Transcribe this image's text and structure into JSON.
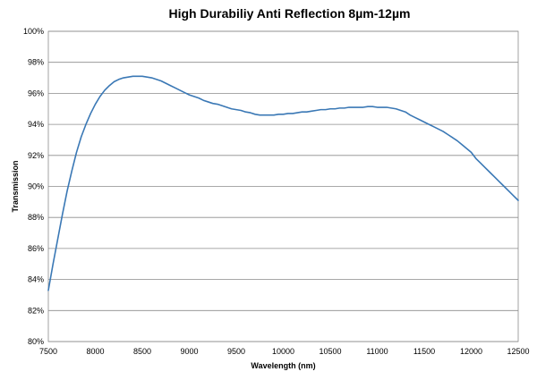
{
  "chart_data": {
    "type": "line",
    "title": "High Durabiliy Anti Reflection 8µm-12µm",
    "xlabel": "Wavelength (nm)",
    "ylabel": "Transmission",
    "xlim": [
      7500,
      12500
    ],
    "ylim": [
      80,
      100
    ],
    "x_ticks": [
      7500,
      8000,
      8500,
      9000,
      9500,
      10000,
      10500,
      11000,
      11500,
      12000,
      12500
    ],
    "x_tick_labels": [
      "7500",
      "8000",
      "8500",
      "9000",
      "9500",
      "10000",
      "10500",
      "11000",
      "11500",
      "12000",
      "12500"
    ],
    "y_ticks": [
      80,
      82,
      84,
      86,
      88,
      90,
      92,
      94,
      96,
      98,
      100
    ],
    "y_tick_labels": [
      "80%",
      "82%",
      "84%",
      "86%",
      "88%",
      "90%",
      "92%",
      "94%",
      "96%",
      "98%",
      "100%"
    ],
    "grid": "horizontal",
    "legend": "none",
    "series": [
      {
        "color": "#3a78b5",
        "x": [
          7500,
          7550,
          7600,
          7650,
          7700,
          7750,
          7800,
          7850,
          7900,
          7950,
          8000,
          8050,
          8100,
          8150,
          8200,
          8250,
          8300,
          8350,
          8400,
          8450,
          8500,
          8550,
          8600,
          8650,
          8700,
          8750,
          8800,
          8850,
          8900,
          8950,
          9000,
          9050,
          9100,
          9150,
          9200,
          9250,
          9300,
          9350,
          9400,
          9450,
          9500,
          9550,
          9600,
          9650,
          9700,
          9750,
          9800,
          9850,
          9900,
          9950,
          10000,
          10050,
          10100,
          10150,
          10200,
          10250,
          10300,
          10350,
          10400,
          10450,
          10500,
          10550,
          10600,
          10650,
          10700,
          10750,
          10800,
          10850,
          10900,
          10950,
          11000,
          11050,
          11100,
          11150,
          11200,
          11250,
          11300,
          11350,
          11400,
          11450,
          11500,
          11550,
          11600,
          11650,
          11700,
          11750,
          11800,
          11850,
          11900,
          11950,
          12000,
          12050,
          12100,
          12150,
          12200,
          12250,
          12300,
          12350,
          12400,
          12450,
          12500
        ],
        "y": [
          83.3,
          85.0,
          86.6,
          88.2,
          89.7,
          91.0,
          92.2,
          93.2,
          94.0,
          94.7,
          95.3,
          95.8,
          96.2,
          96.5,
          96.75,
          96.9,
          97.0,
          97.05,
          97.1,
          97.1,
          97.1,
          97.05,
          97.0,
          96.9,
          96.8,
          96.65,
          96.5,
          96.35,
          96.2,
          96.05,
          95.9,
          95.8,
          95.7,
          95.55,
          95.45,
          95.35,
          95.3,
          95.2,
          95.1,
          95.0,
          94.95,
          94.9,
          94.8,
          94.75,
          94.65,
          94.6,
          94.6,
          94.6,
          94.6,
          94.65,
          94.65,
          94.7,
          94.7,
          94.75,
          94.8,
          94.8,
          94.85,
          94.9,
          94.95,
          94.95,
          95.0,
          95.0,
          95.05,
          95.05,
          95.1,
          95.1,
          95.1,
          95.1,
          95.15,
          95.15,
          95.1,
          95.1,
          95.1,
          95.05,
          95.0,
          94.9,
          94.8,
          94.6,
          94.45,
          94.3,
          94.15,
          94.0,
          93.85,
          93.7,
          93.55,
          93.35,
          93.15,
          92.95,
          92.7,
          92.45,
          92.2,
          91.8,
          91.5,
          91.2,
          90.9,
          90.6,
          90.3,
          90.0,
          89.7,
          89.4,
          89.1
        ]
      }
    ]
  }
}
